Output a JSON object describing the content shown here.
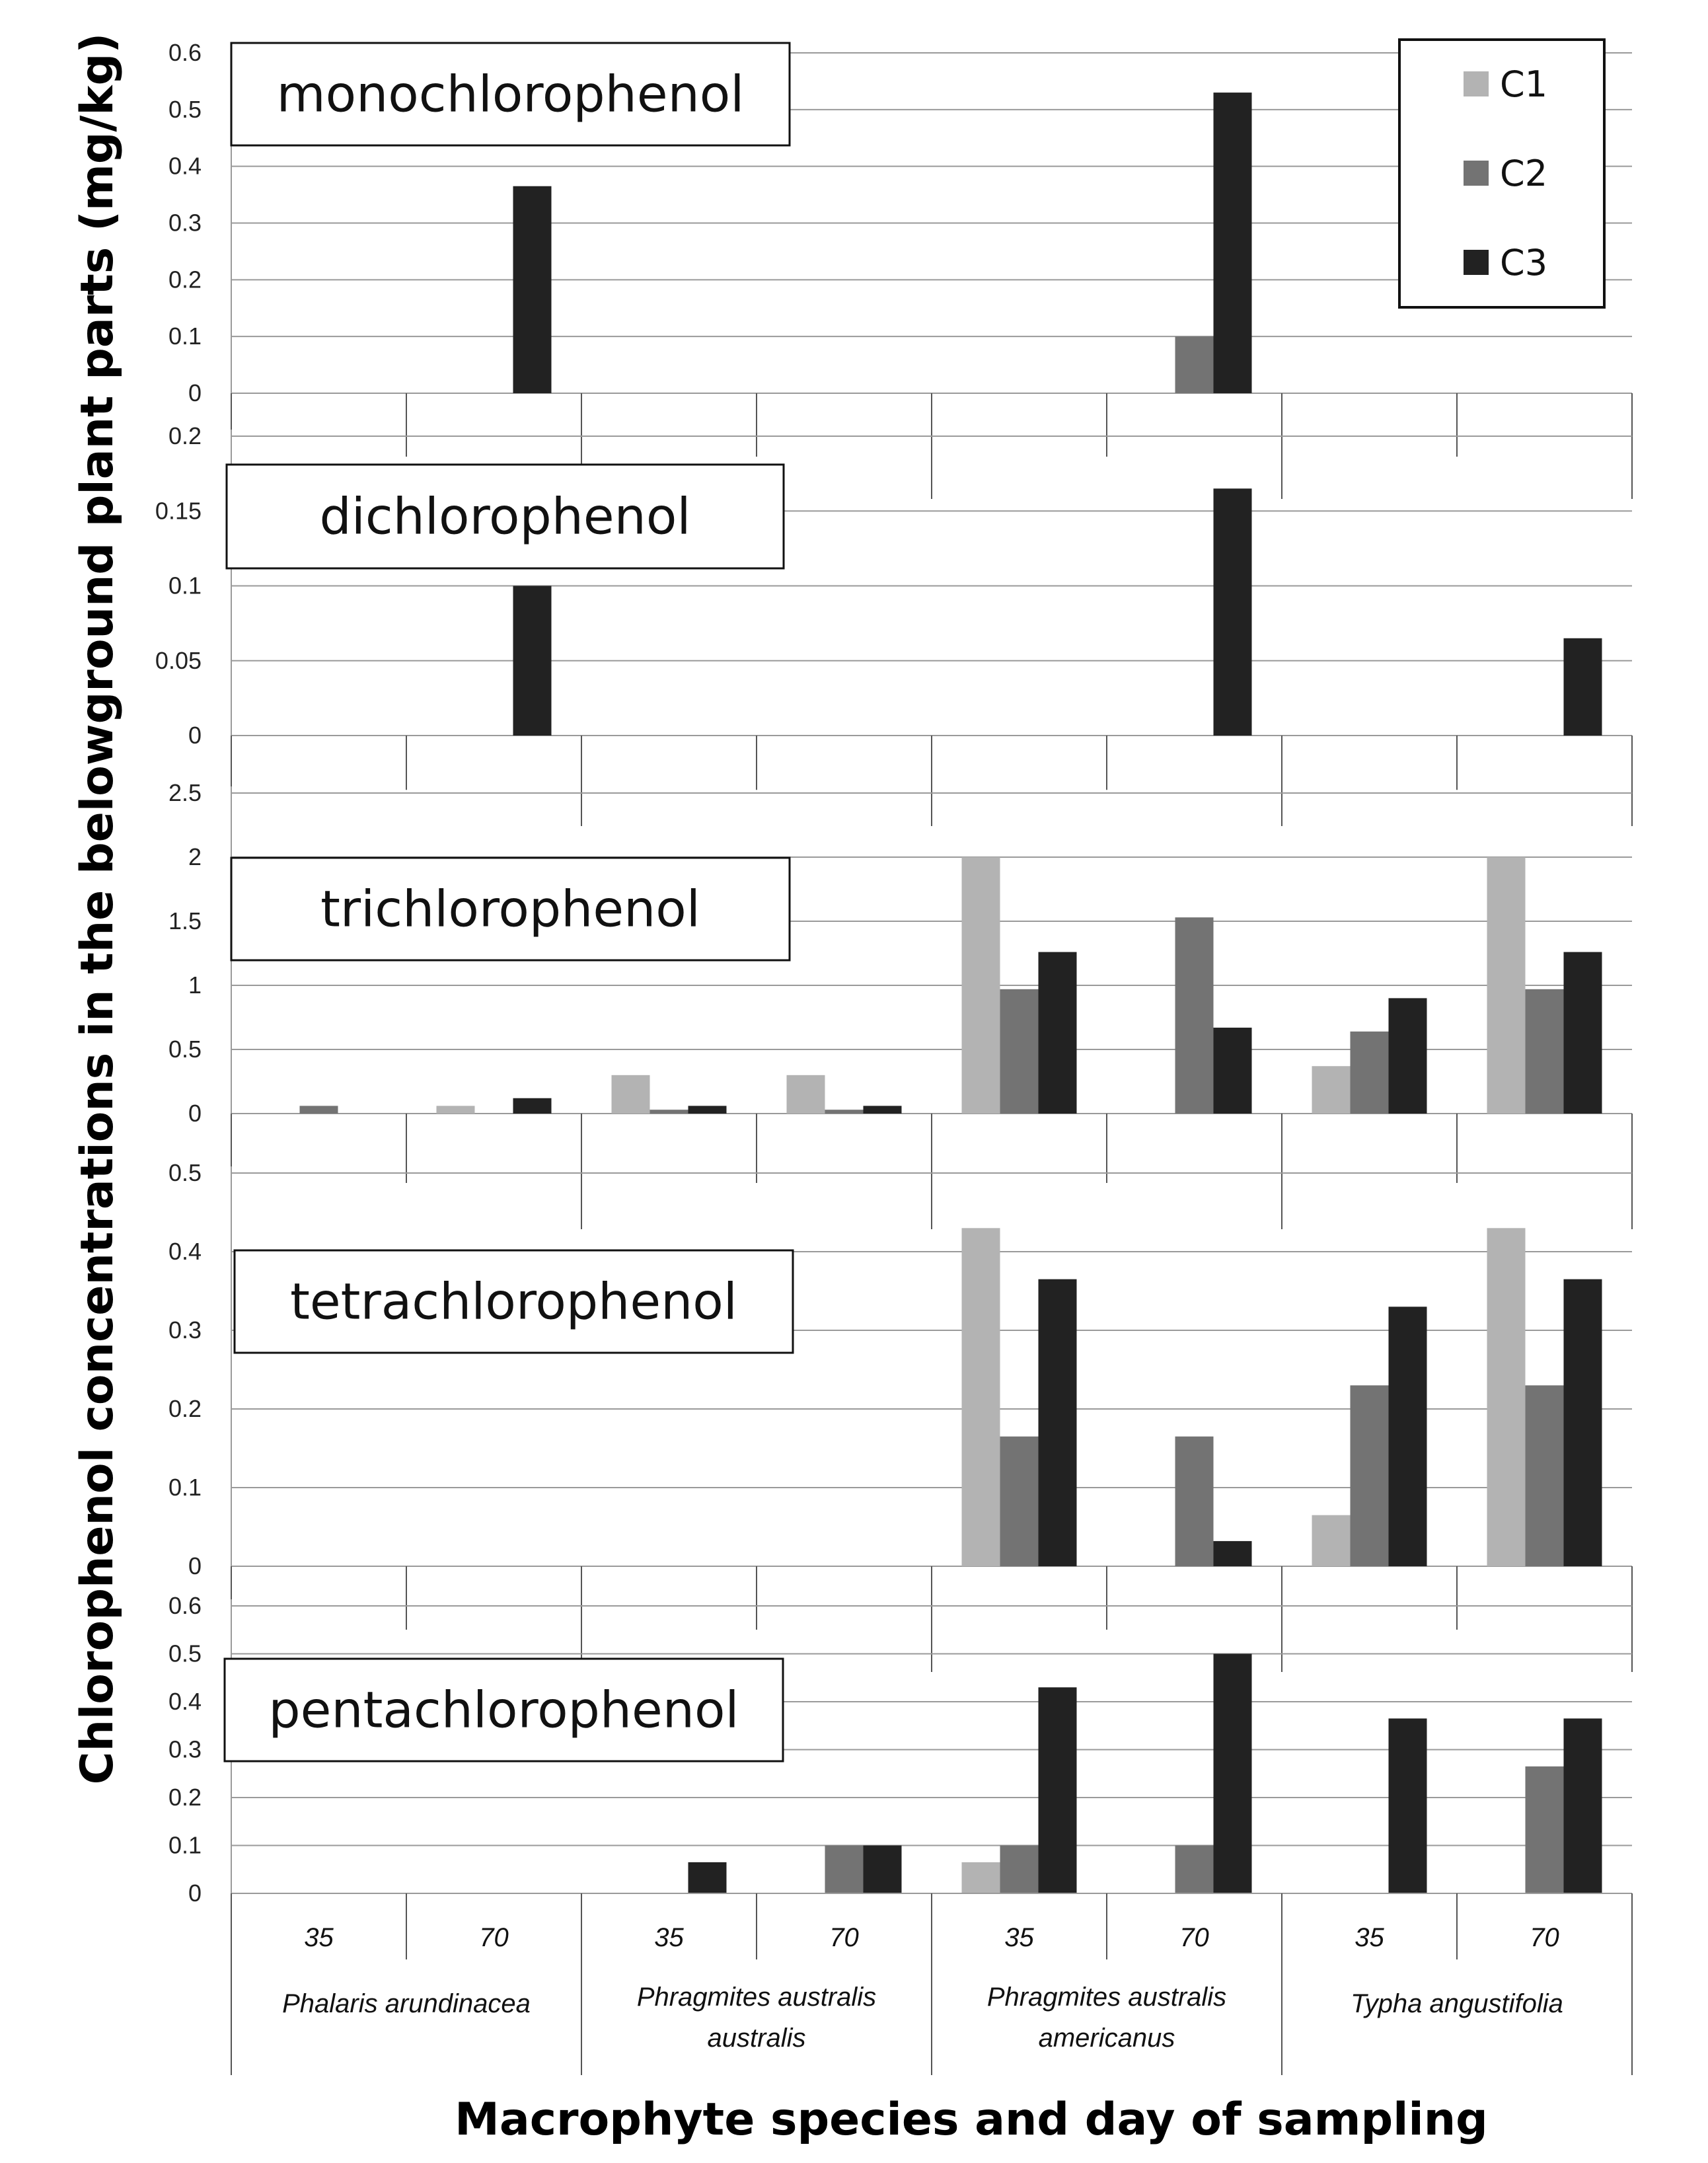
{
  "chart_data": {
    "type": "bar",
    "xlabel": "Macrophyte species and day of sampling",
    "ylabel": "Chlorophenol concentrations in the belowground plant parts (mg/kg)",
    "legend": [
      "C1",
      "C2",
      "C3"
    ],
    "colors": {
      "C1": "#b3b3b3",
      "C2": "#737373",
      "C3": "#222222"
    },
    "groups": [
      {
        "species": [
          "Phalaris arundinacea"
        ],
        "days": [
          "35",
          "70"
        ]
      },
      {
        "species": [
          "Phragmites australis",
          "australis"
        ],
        "days": [
          "35",
          "70"
        ]
      },
      {
        "species": [
          "Phragmites australis",
          "americanus"
        ],
        "days": [
          "35",
          "70"
        ]
      },
      {
        "species": [
          "Typha angustifolia"
        ],
        "days": [
          "35",
          "70"
        ]
      }
    ],
    "panels": [
      {
        "title": "monochlorophenol",
        "ylim": [
          0,
          0.6
        ],
        "ticks": [
          "0",
          "0.1",
          "0.2",
          "0.3",
          "0.4",
          "0.5",
          "0.6"
        ],
        "series": [
          {
            "name": "C1",
            "values": [
              0,
              0,
              0,
              0,
              0,
              0,
              0,
              0
            ]
          },
          {
            "name": "C2",
            "values": [
              0,
              0,
              0,
              0,
              0,
              0.1,
              0,
              0
            ]
          },
          {
            "name": "C3",
            "values": [
              0,
              0.365,
              0,
              0,
              0,
              0.53,
              0,
              0
            ]
          }
        ]
      },
      {
        "title": "dichlorophenol",
        "ylim": [
          0,
          0.2
        ],
        "ticks": [
          "0",
          "0.05",
          "0.1",
          "0.15",
          "0.2"
        ],
        "series": [
          {
            "name": "C1",
            "values": [
              0,
              0,
              0,
              0,
              0,
              0,
              0,
              0
            ]
          },
          {
            "name": "C2",
            "values": [
              0,
              0,
              0,
              0,
              0,
              0,
              0,
              0
            ]
          },
          {
            "name": "C3",
            "values": [
              0,
              0.1,
              0,
              0,
              0,
              0.165,
              0,
              0.065
            ]
          }
        ]
      },
      {
        "title": "trichlorophenol",
        "ylim": [
          0,
          2.5
        ],
        "ticks": [
          "0",
          "0.5",
          "1",
          "1.5",
          "2",
          "2.5"
        ],
        "series": [
          {
            "name": "C1",
            "values": [
              0,
              0.06,
              0.3,
              0.3,
              2.0,
              0,
              0.37,
              2.0
            ]
          },
          {
            "name": "C2",
            "values": [
              0.06,
              0,
              0.03,
              0.03,
              0.97,
              1.53,
              0.64,
              0.97
            ]
          },
          {
            "name": "C3",
            "values": [
              0,
              0.12,
              0.06,
              0.06,
              1.26,
              0.67,
              0.9,
              1.26
            ]
          }
        ]
      },
      {
        "title": "tetrachlorophenol",
        "ylim": [
          0,
          0.5
        ],
        "ticks": [
          "0",
          "0.1",
          "0.2",
          "0.3",
          "0.4",
          "0.5"
        ],
        "series": [
          {
            "name": "C1",
            "values": [
              0,
              0,
              0,
              0,
              0.43,
              0,
              0.065,
              0.43
            ]
          },
          {
            "name": "C2",
            "values": [
              0,
              0,
              0,
              0,
              0.165,
              0.165,
              0.23,
              0.23
            ]
          },
          {
            "name": "C3",
            "values": [
              0,
              0,
              0,
              0,
              0.365,
              0.032,
              0.33,
              0.365
            ]
          }
        ]
      },
      {
        "title": "pentachlorophenol",
        "ylim": [
          0,
          0.6
        ],
        "ticks": [
          "0",
          "0.1",
          "0.2",
          "0.3",
          "0.4",
          "0.5",
          "0.6"
        ],
        "series": [
          {
            "name": "C1",
            "values": [
              0,
              0,
              0,
              0,
              0.065,
              0,
              0,
              0
            ]
          },
          {
            "name": "C2",
            "values": [
              0,
              0,
              0,
              0.1,
              0.1,
              0.1,
              0,
              0.265
            ]
          },
          {
            "name": "C3",
            "values": [
              0,
              0,
              0.065,
              0.1,
              0.43,
              0.5,
              0.365,
              0.365
            ]
          }
        ]
      }
    ]
  }
}
